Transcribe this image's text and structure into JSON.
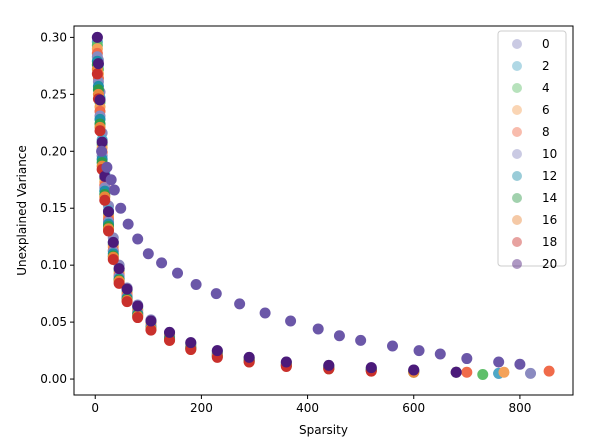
{
  "chart_data": {
    "type": "scatter",
    "title": "",
    "xlabel": "Sparsity",
    "ylabel": "Unexplained Variance",
    "xlim": [
      -40,
      900
    ],
    "ylim": [
      -0.014,
      0.31
    ],
    "xticks": [
      0,
      200,
      400,
      600,
      800
    ],
    "xtick_labels": [
      "0",
      "200",
      "400",
      "600",
      "800"
    ],
    "yticks": [
      0.0,
      0.05,
      0.1,
      0.15,
      0.2,
      0.25,
      0.3
    ],
    "ytick_labels": [
      "0.00",
      "0.05",
      "0.10",
      "0.15",
      "0.20",
      "0.25",
      "0.30"
    ],
    "grid": false,
    "legend_position": "upper-right",
    "legend_alpha": 0.45,
    "series": [
      {
        "name": "0",
        "color": "#8a8ac0",
        "points": [
          [
            4,
            0.3
          ],
          [
            6,
            0.28
          ],
          [
            9,
            0.252
          ],
          [
            13,
            0.216
          ],
          [
            18,
            0.185
          ],
          [
            25,
            0.152
          ],
          [
            34,
            0.124
          ],
          [
            45,
            0.1
          ],
          [
            60,
            0.08
          ],
          [
            80,
            0.065
          ],
          [
            105,
            0.052
          ],
          [
            140,
            0.041
          ],
          [
            180,
            0.032
          ],
          [
            230,
            0.025
          ],
          [
            290,
            0.019
          ],
          [
            360,
            0.015
          ],
          [
            440,
            0.012
          ],
          [
            520,
            0.01
          ],
          [
            600,
            0.008
          ],
          [
            680,
            0.006
          ],
          [
            760,
            0.005
          ],
          [
            820,
            0.005
          ]
        ]
      },
      {
        "name": "2",
        "color": "#4fa8c6",
        "points": [
          [
            4,
            0.296
          ],
          [
            6,
            0.276
          ],
          [
            9,
            0.247
          ],
          [
            13,
            0.21
          ],
          [
            18,
            0.18
          ],
          [
            25,
            0.148
          ],
          [
            34,
            0.12
          ],
          [
            45,
            0.097
          ],
          [
            60,
            0.078
          ],
          [
            80,
            0.063
          ],
          [
            105,
            0.05
          ],
          [
            140,
            0.04
          ],
          [
            180,
            0.031
          ],
          [
            230,
            0.024
          ],
          [
            290,
            0.018
          ],
          [
            360,
            0.014
          ],
          [
            440,
            0.011
          ],
          [
            520,
            0.009
          ],
          [
            600,
            0.007
          ],
          [
            680,
            0.006
          ],
          [
            760,
            0.005
          ]
        ]
      },
      {
        "name": "4",
        "color": "#5fbf6a",
        "points": [
          [
            4,
            0.293
          ],
          [
            6,
            0.272
          ],
          [
            9,
            0.243
          ],
          [
            13,
            0.206
          ],
          [
            18,
            0.176
          ],
          [
            25,
            0.145
          ],
          [
            34,
            0.118
          ],
          [
            45,
            0.095
          ],
          [
            60,
            0.076
          ],
          [
            80,
            0.061
          ],
          [
            105,
            0.049
          ],
          [
            140,
            0.039
          ],
          [
            180,
            0.03
          ],
          [
            230,
            0.023
          ],
          [
            290,
            0.018
          ],
          [
            360,
            0.014
          ],
          [
            440,
            0.011
          ],
          [
            520,
            0.009
          ],
          [
            600,
            0.007
          ],
          [
            680,
            0.006
          ],
          [
            730,
            0.004
          ]
        ]
      },
      {
        "name": "6",
        "color": "#f4a259",
        "points": [
          [
            4,
            0.29
          ],
          [
            6,
            0.268
          ],
          [
            9,
            0.239
          ],
          [
            13,
            0.203
          ],
          [
            18,
            0.173
          ],
          [
            25,
            0.143
          ],
          [
            34,
            0.116
          ],
          [
            45,
            0.093
          ],
          [
            60,
            0.075
          ],
          [
            80,
            0.06
          ],
          [
            105,
            0.048
          ],
          [
            140,
            0.038
          ],
          [
            180,
            0.029
          ],
          [
            230,
            0.022
          ],
          [
            290,
            0.017
          ],
          [
            360,
            0.013
          ],
          [
            440,
            0.01
          ],
          [
            520,
            0.008
          ],
          [
            600,
            0.007
          ],
          [
            680,
            0.006
          ],
          [
            770,
            0.006
          ]
        ]
      },
      {
        "name": "8",
        "color": "#f06b4a",
        "points": [
          [
            4,
            0.286
          ],
          [
            6,
            0.264
          ],
          [
            9,
            0.235
          ],
          [
            13,
            0.199
          ],
          [
            18,
            0.17
          ],
          [
            25,
            0.14
          ],
          [
            34,
            0.113
          ],
          [
            45,
            0.091
          ],
          [
            60,
            0.073
          ],
          [
            80,
            0.058
          ],
          [
            105,
            0.046
          ],
          [
            140,
            0.037
          ],
          [
            180,
            0.028
          ],
          [
            230,
            0.022
          ],
          [
            290,
            0.017
          ],
          [
            360,
            0.013
          ],
          [
            440,
            0.01
          ],
          [
            520,
            0.008
          ],
          [
            600,
            0.007
          ],
          [
            700,
            0.006
          ],
          [
            855,
            0.007
          ]
        ]
      },
      {
        "name": "10",
        "color": "#8a8ac0",
        "points": [
          [
            4,
            0.283
          ],
          [
            6,
            0.261
          ],
          [
            9,
            0.231
          ],
          [
            13,
            0.196
          ],
          [
            18,
            0.168
          ],
          [
            25,
            0.138
          ],
          [
            34,
            0.112
          ],
          [
            45,
            0.09
          ],
          [
            60,
            0.072
          ],
          [
            80,
            0.058
          ],
          [
            105,
            0.046
          ],
          [
            140,
            0.036
          ],
          [
            180,
            0.028
          ],
          [
            230,
            0.021
          ],
          [
            290,
            0.016
          ],
          [
            360,
            0.012
          ],
          [
            440,
            0.01
          ],
          [
            520,
            0.008
          ],
          [
            600,
            0.007
          ],
          [
            680,
            0.006
          ]
        ]
      },
      {
        "name": "12",
        "color": "#1f8fa8",
        "points": [
          [
            4,
            0.279
          ],
          [
            6,
            0.257
          ],
          [
            9,
            0.228
          ],
          [
            13,
            0.193
          ],
          [
            18,
            0.165
          ],
          [
            25,
            0.136
          ],
          [
            34,
            0.11
          ],
          [
            45,
            0.088
          ],
          [
            60,
            0.071
          ],
          [
            80,
            0.057
          ],
          [
            105,
            0.045
          ],
          [
            140,
            0.036
          ],
          [
            180,
            0.027
          ],
          [
            230,
            0.021
          ],
          [
            290,
            0.016
          ],
          [
            360,
            0.012
          ],
          [
            440,
            0.01
          ],
          [
            520,
            0.008
          ],
          [
            600,
            0.007
          ]
        ]
      },
      {
        "name": "14",
        "color": "#2f9a4a",
        "points": [
          [
            4,
            0.276
          ],
          [
            6,
            0.254
          ],
          [
            9,
            0.224
          ],
          [
            13,
            0.19
          ],
          [
            18,
            0.162
          ],
          [
            25,
            0.134
          ],
          [
            34,
            0.108
          ],
          [
            45,
            0.087
          ],
          [
            60,
            0.07
          ],
          [
            80,
            0.056
          ],
          [
            105,
            0.044
          ],
          [
            140,
            0.035
          ],
          [
            180,
            0.027
          ],
          [
            230,
            0.02
          ],
          [
            290,
            0.016
          ],
          [
            360,
            0.012
          ],
          [
            440,
            0.009
          ],
          [
            520,
            0.008
          ],
          [
            600,
            0.006
          ]
        ]
      },
      {
        "name": "16",
        "color": "#e8873a",
        "points": [
          [
            4,
            0.272
          ],
          [
            6,
            0.25
          ],
          [
            9,
            0.221
          ],
          [
            13,
            0.187
          ],
          [
            18,
            0.16
          ],
          [
            25,
            0.132
          ],
          [
            34,
            0.107
          ],
          [
            45,
            0.086
          ],
          [
            60,
            0.069
          ],
          [
            80,
            0.055
          ],
          [
            105,
            0.044
          ],
          [
            140,
            0.034
          ],
          [
            180,
            0.026
          ],
          [
            230,
            0.02
          ],
          [
            290,
            0.015
          ],
          [
            360,
            0.012
          ],
          [
            440,
            0.009
          ],
          [
            520,
            0.007
          ],
          [
            600,
            0.006
          ]
        ]
      },
      {
        "name": "18",
        "color": "#c9302c",
        "points": [
          [
            4,
            0.268
          ],
          [
            6,
            0.246
          ],
          [
            9,
            0.218
          ],
          [
            13,
            0.184
          ],
          [
            18,
            0.157
          ],
          [
            25,
            0.13
          ],
          [
            34,
            0.105
          ],
          [
            45,
            0.084
          ],
          [
            60,
            0.068
          ],
          [
            80,
            0.054
          ],
          [
            105,
            0.043
          ],
          [
            140,
            0.034
          ],
          [
            180,
            0.026
          ],
          [
            230,
            0.019
          ],
          [
            290,
            0.015
          ],
          [
            360,
            0.011
          ],
          [
            440,
            0.009
          ],
          [
            520,
            0.007
          ]
        ]
      },
      {
        "name": "20",
        "color": "#4b1a7a",
        "points": [
          [
            4,
            0.3
          ],
          [
            6,
            0.277
          ],
          [
            9,
            0.245
          ],
          [
            13,
            0.208
          ],
          [
            18,
            0.178
          ],
          [
            25,
            0.147
          ],
          [
            34,
            0.12
          ],
          [
            45,
            0.097
          ],
          [
            60,
            0.079
          ],
          [
            80,
            0.064
          ],
          [
            105,
            0.051
          ],
          [
            140,
            0.041
          ],
          [
            180,
            0.032
          ],
          [
            230,
            0.025
          ],
          [
            290,
            0.019
          ],
          [
            360,
            0.015
          ],
          [
            440,
            0.012
          ],
          [
            520,
            0.01
          ],
          [
            600,
            0.008
          ],
          [
            680,
            0.006
          ]
        ]
      }
    ],
    "extra_points": {
      "name": "",
      "color": "#6b57a8",
      "points": [
        [
          12,
          0.2
        ],
        [
          22,
          0.186
        ],
        [
          30,
          0.175
        ],
        [
          36,
          0.166
        ],
        [
          48,
          0.15
        ],
        [
          62,
          0.136
        ],
        [
          80,
          0.123
        ],
        [
          100,
          0.11
        ],
        [
          125,
          0.102
        ],
        [
          155,
          0.093
        ],
        [
          190,
          0.083
        ],
        [
          228,
          0.075
        ],
        [
          272,
          0.066
        ],
        [
          320,
          0.058
        ],
        [
          368,
          0.051
        ],
        [
          420,
          0.044
        ],
        [
          460,
          0.038
        ],
        [
          500,
          0.034
        ],
        [
          560,
          0.029
        ],
        [
          610,
          0.025
        ],
        [
          650,
          0.022
        ],
        [
          700,
          0.018
        ],
        [
          760,
          0.015
        ],
        [
          800,
          0.013
        ]
      ]
    }
  }
}
